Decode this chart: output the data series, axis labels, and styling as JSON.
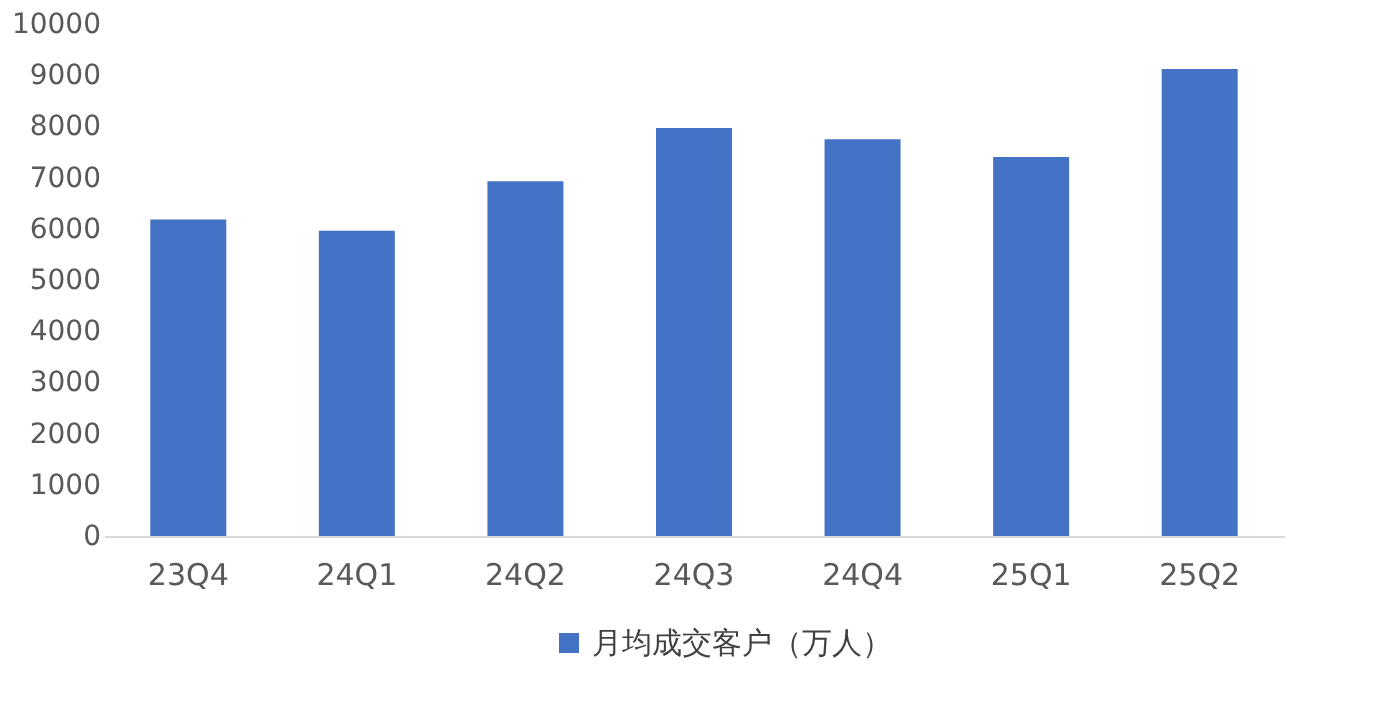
{
  "chart_data": {
    "type": "bar",
    "categories": [
      "23Q4",
      "24Q1",
      "24Q2",
      "24Q3",
      "24Q4",
      "25Q1",
      "25Q2"
    ],
    "series": [
      {
        "name": "月均成交客户（万人）",
        "color": "#4472c4",
        "values": [
          6180,
          5960,
          6930,
          7970,
          7750,
          7400,
          9120
        ]
      }
    ],
    "ylim": [
      0,
      10000
    ],
    "yticks": [
      0,
      1000,
      2000,
      3000,
      4000,
      5000,
      6000,
      7000,
      8000,
      9000,
      10000
    ],
    "grid": false,
    "legend": "bottom"
  }
}
